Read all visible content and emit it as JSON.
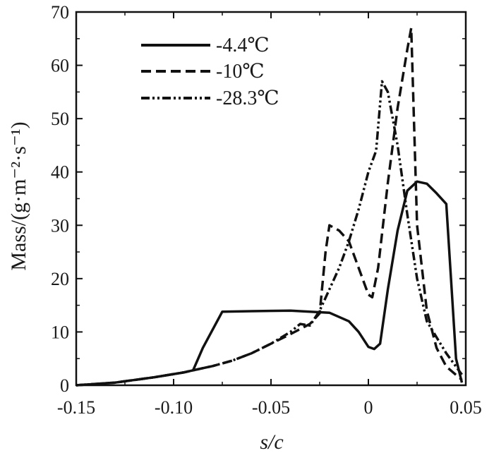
{
  "chart_data": {
    "type": "line",
    "xlabel": "s/c",
    "ylabel": "Mass/(g·m⁻²·s⁻¹)",
    "xlim": [
      -0.15,
      0.05
    ],
    "ylim": [
      0,
      70
    ],
    "xticks": [
      -0.15,
      -0.1,
      -0.05,
      0,
      0.05
    ],
    "xtick_labels": [
      "-0.15",
      "-0.10",
      "-0.05",
      "0",
      "0.05"
    ],
    "yticks": [
      0,
      10,
      20,
      30,
      40,
      50,
      60,
      70
    ],
    "ytick_labels": [
      "0",
      "10",
      "20",
      "30",
      "40",
      "50",
      "60",
      "70"
    ],
    "legend_position": "top-left",
    "grid": false,
    "series": [
      {
        "name": "-4.4℃",
        "dash": "solid",
        "color": "#111111",
        "x": [
          -0.15,
          -0.13,
          -0.11,
          -0.095,
          -0.09,
          -0.085,
          -0.075,
          -0.06,
          -0.04,
          -0.02,
          -0.01,
          -0.005,
          0,
          0.003,
          0.006,
          0.01,
          0.015,
          0.02,
          0.025,
          0.03,
          0.035,
          0.04,
          0.045,
          0.048
        ],
        "y": [
          0,
          0.5,
          1.5,
          2.4,
          2.8,
          7,
          13.8,
          13.9,
          14,
          13.6,
          12,
          10,
          7.2,
          6.8,
          7.8,
          18,
          29,
          36.5,
          38.2,
          37.8,
          36,
          34,
          5,
          0.5
        ]
      },
      {
        "name": "-10℃",
        "dash": "dash",
        "color": "#111111",
        "x": [
          -0.15,
          -0.13,
          -0.11,
          -0.095,
          -0.09,
          -0.08,
          -0.07,
          -0.06,
          -0.05,
          -0.04,
          -0.03,
          -0.025,
          -0.022,
          -0.02,
          -0.015,
          -0.01,
          -0.005,
          0,
          0.002,
          0.005,
          0.01,
          0.015,
          0.02,
          0.022,
          0.025,
          0.03,
          0.035,
          0.04,
          0.048
        ],
        "y": [
          0,
          0.5,
          1.5,
          2.4,
          2.8,
          3.6,
          4.6,
          6,
          7.8,
          9.6,
          11.5,
          13.5,
          25,
          30,
          29,
          27,
          22,
          17,
          16.5,
          22,
          38,
          52,
          63,
          67,
          30,
          14,
          7,
          3.5,
          1
        ]
      },
      {
        "name": "-28.3℃",
        "dash": "dashdotdot",
        "color": "#111111",
        "x": [
          -0.15,
          -0.13,
          -0.11,
          -0.095,
          -0.09,
          -0.08,
          -0.07,
          -0.06,
          -0.05,
          -0.04,
          -0.035,
          -0.03,
          -0.025,
          -0.02,
          -0.015,
          -0.01,
          -0.005,
          0,
          0.004,
          0.007,
          0.01,
          0.015,
          0.02,
          0.025,
          0.03,
          0.04,
          0.048
        ],
        "y": [
          0,
          0.5,
          1.5,
          2.4,
          2.8,
          3.6,
          4.6,
          6,
          7.8,
          10,
          11.5,
          11.2,
          14,
          18,
          22,
          27,
          33,
          40,
          44,
          57,
          55,
          45,
          32,
          20,
          12,
          6,
          2
        ]
      }
    ]
  }
}
